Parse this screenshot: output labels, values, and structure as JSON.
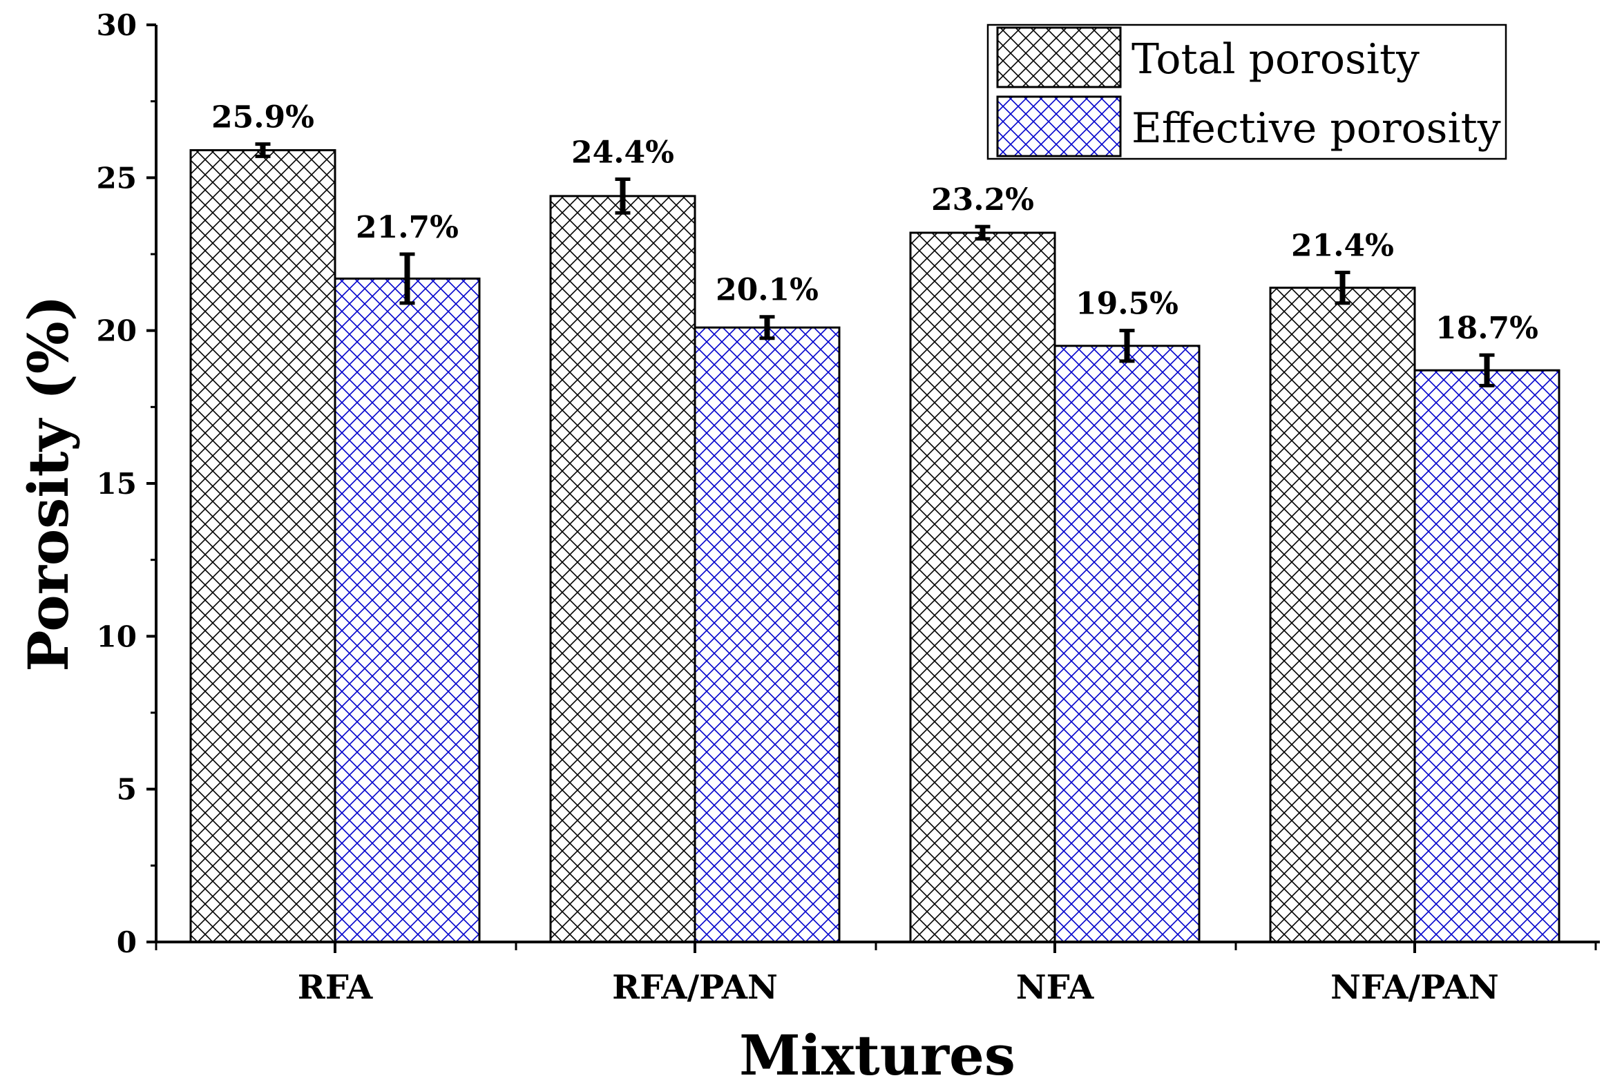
{
  "chart_data": {
    "type": "bar",
    "title": "",
    "xlabel": "Mixtures",
    "ylabel": "Porosity (%)",
    "ylim": [
      0,
      30
    ],
    "yticks": [
      0,
      5,
      10,
      15,
      20,
      25,
      30
    ],
    "grid": false,
    "legend_position": "top-right",
    "categories": [
      "RFA",
      "RFA/PAN",
      "NFA",
      "NFA/PAN"
    ],
    "series": [
      {
        "name": "Total porosity",
        "color": "#000000",
        "hatch": "crosshatch",
        "values": [
          25.9,
          24.4,
          23.2,
          21.4
        ],
        "errors": [
          0.2,
          0.55,
          0.2,
          0.5
        ],
        "labels": [
          "25.9%",
          "24.4%",
          "23.2%",
          "21.4%"
        ]
      },
      {
        "name": "Effective porosity",
        "color": "#0000cc",
        "hatch": "crosshatch",
        "values": [
          21.7,
          20.1,
          19.5,
          18.7
        ],
        "errors": [
          0.8,
          0.35,
          0.5,
          0.5
        ],
        "labels": [
          "21.7%",
          "20.1%",
          "19.5%",
          "18.7%"
        ]
      }
    ]
  }
}
